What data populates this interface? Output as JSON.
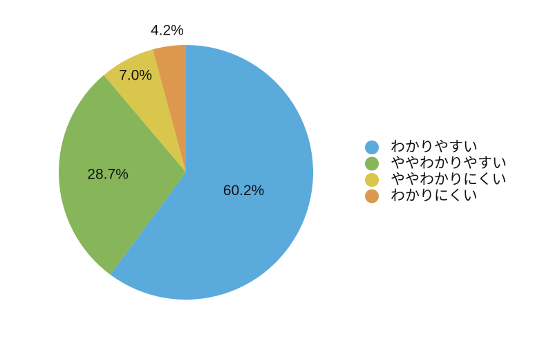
{
  "chart_data": {
    "type": "pie",
    "title": "",
    "start_angle": "top, clockwise",
    "slices": [
      {
        "name": "わかりやすい",
        "value": 60.2,
        "label": "60.2%",
        "color": "#5aaadc"
      },
      {
        "name": "ややわかりやすい",
        "value": 28.7,
        "label": "28.7%",
        "color": "#86b55a"
      },
      {
        "name": "ややわかりにくい",
        "value": 7.0,
        "label": "7.0%",
        "color": "#d9c64c"
      },
      {
        "name": "わかりにくい",
        "value": 4.2,
        "label": "4.2%",
        "color": "#dd9850"
      }
    ],
    "legend_position": "right"
  }
}
